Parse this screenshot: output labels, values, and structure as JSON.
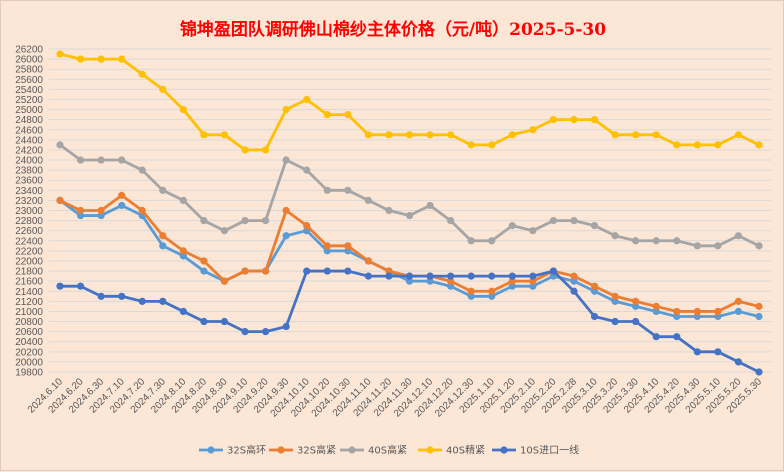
{
  "chart_data": {
    "type": "line",
    "title": "锦坤盈团队调研佛山棉纱主体价格（元/吨）2025-5-30",
    "xlabel": "",
    "ylabel": "",
    "ylim": [
      19800,
      26200
    ],
    "ystep": 200,
    "grid": true,
    "legend_position": "bottom",
    "categories": [
      "2024.6.10",
      "2024.6.20",
      "2024.6.30",
      "2024.7.10",
      "2024.7.20",
      "2024.7.30",
      "2024.8.10",
      "2024.8.20",
      "2024.8.30",
      "2024.9.10",
      "2024.9.20",
      "2024.9.30",
      "2024.10.10",
      "2024.10.20",
      "2024.10.30",
      "2024.11.10",
      "2024.11.20",
      "2024.11.30",
      "2024.12.10",
      "2024.12.20",
      "2024.12.30",
      "2025.1.10",
      "2025.1.20",
      "2025.2.10",
      "2025.2.20",
      "2025.2.28",
      "2025.3.10",
      "2025.3.20",
      "2025.3.30",
      "2025.4.10",
      "2025.4.20",
      "2025.4.30",
      "2025.5.10",
      "2025.5.20",
      "2025.5.30"
    ],
    "series": [
      {
        "name": "32S高环",
        "color": "#5b9bd5",
        "values": [
          23200,
          22900,
          22900,
          23100,
          22900,
          22300,
          22100,
          21800,
          21600,
          21800,
          21800,
          22500,
          22600,
          22200,
          22200,
          22000,
          21800,
          21600,
          21600,
          21500,
          21300,
          21300,
          21500,
          21500,
          21700,
          21600,
          21400,
          21200,
          21100,
          21000,
          20900,
          20900,
          20900,
          21000,
          20900
        ]
      },
      {
        "name": "32S高紧",
        "color": "#ed7d31",
        "values": [
          23200,
          23000,
          23000,
          23300,
          23000,
          22500,
          22200,
          22000,
          21600,
          21800,
          21800,
          23000,
          22700,
          22300,
          22300,
          22000,
          21800,
          21700,
          21700,
          21600,
          21400,
          21400,
          21600,
          21600,
          21800,
          21700,
          21500,
          21300,
          21200,
          21100,
          21000,
          21000,
          21000,
          21200,
          21100
        ]
      },
      {
        "name": "40S高紧",
        "color": "#a5a5a5",
        "values": [
          24300,
          24000,
          24000,
          24000,
          23800,
          23400,
          23200,
          22800,
          22600,
          22800,
          22800,
          24000,
          23800,
          23400,
          23400,
          23200,
          23000,
          22900,
          23100,
          22800,
          22400,
          22400,
          22700,
          22600,
          22800,
          22800,
          22700,
          22500,
          22400,
          22400,
          22400,
          22300,
          22300,
          22500,
          22300
        ]
      },
      {
        "name": "40S精紧",
        "color": "#ffc000",
        "values": [
          26100,
          26000,
          26000,
          26000,
          25700,
          25400,
          25000,
          24500,
          24500,
          24200,
          24200,
          25000,
          25200,
          24900,
          24900,
          24500,
          24500,
          24500,
          24500,
          24500,
          24300,
          24300,
          24500,
          24600,
          24800,
          24800,
          24800,
          24500,
          24500,
          24500,
          24300,
          24300,
          24300,
          24500,
          24300
        ]
      },
      {
        "name": "10S进口一线",
        "color": "#4472c4",
        "values": [
          21500,
          21500,
          21300,
          21300,
          21200,
          21200,
          21000,
          20800,
          20800,
          20600,
          20600,
          20700,
          21800,
          21800,
          21800,
          21700,
          21700,
          21700,
          21700,
          21700,
          21700,
          21700,
          21700,
          21700,
          21800,
          21400,
          20900,
          20800,
          20800,
          20500,
          20500,
          20200,
          20200,
          20000,
          19800
        ]
      }
    ]
  }
}
